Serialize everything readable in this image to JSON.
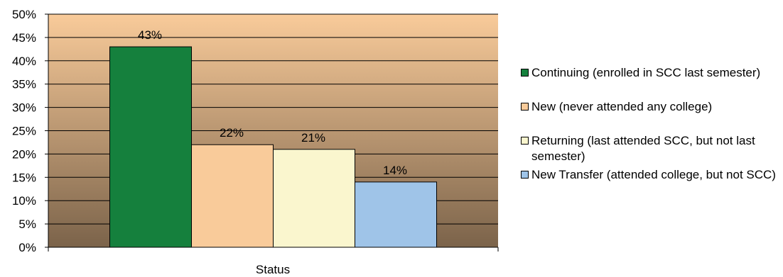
{
  "chart_data": {
    "type": "bar",
    "title": "",
    "xlabel": "Status",
    "ylabel": "",
    "ylim": [
      0,
      50
    ],
    "y_ticks": [
      "0%",
      "5%",
      "10%",
      "15%",
      "20%",
      "25%",
      "30%",
      "35%",
      "40%",
      "45%",
      "50%"
    ],
    "grid": true,
    "legend_position": "right",
    "plot_background": "gradient from #F9CB9A (top) to #7B634A (bottom)",
    "series": [
      {
        "name": "Continuing (enrolled in SCC last semester)",
        "value": 43,
        "label": "43%",
        "color": "#15803D"
      },
      {
        "name": "New (never attended any college)",
        "value": 22,
        "label": "22%",
        "color": "#F9CB9A"
      },
      {
        "name": "Returning (last attended SCC, but not last semester)",
        "value": 21,
        "label": "21%",
        "color": "#FAF6CE"
      },
      {
        "name": "New Transfer (attended college, but not SCC)",
        "value": 14,
        "label": "14%",
        "color": "#9FC4E8"
      }
    ]
  }
}
